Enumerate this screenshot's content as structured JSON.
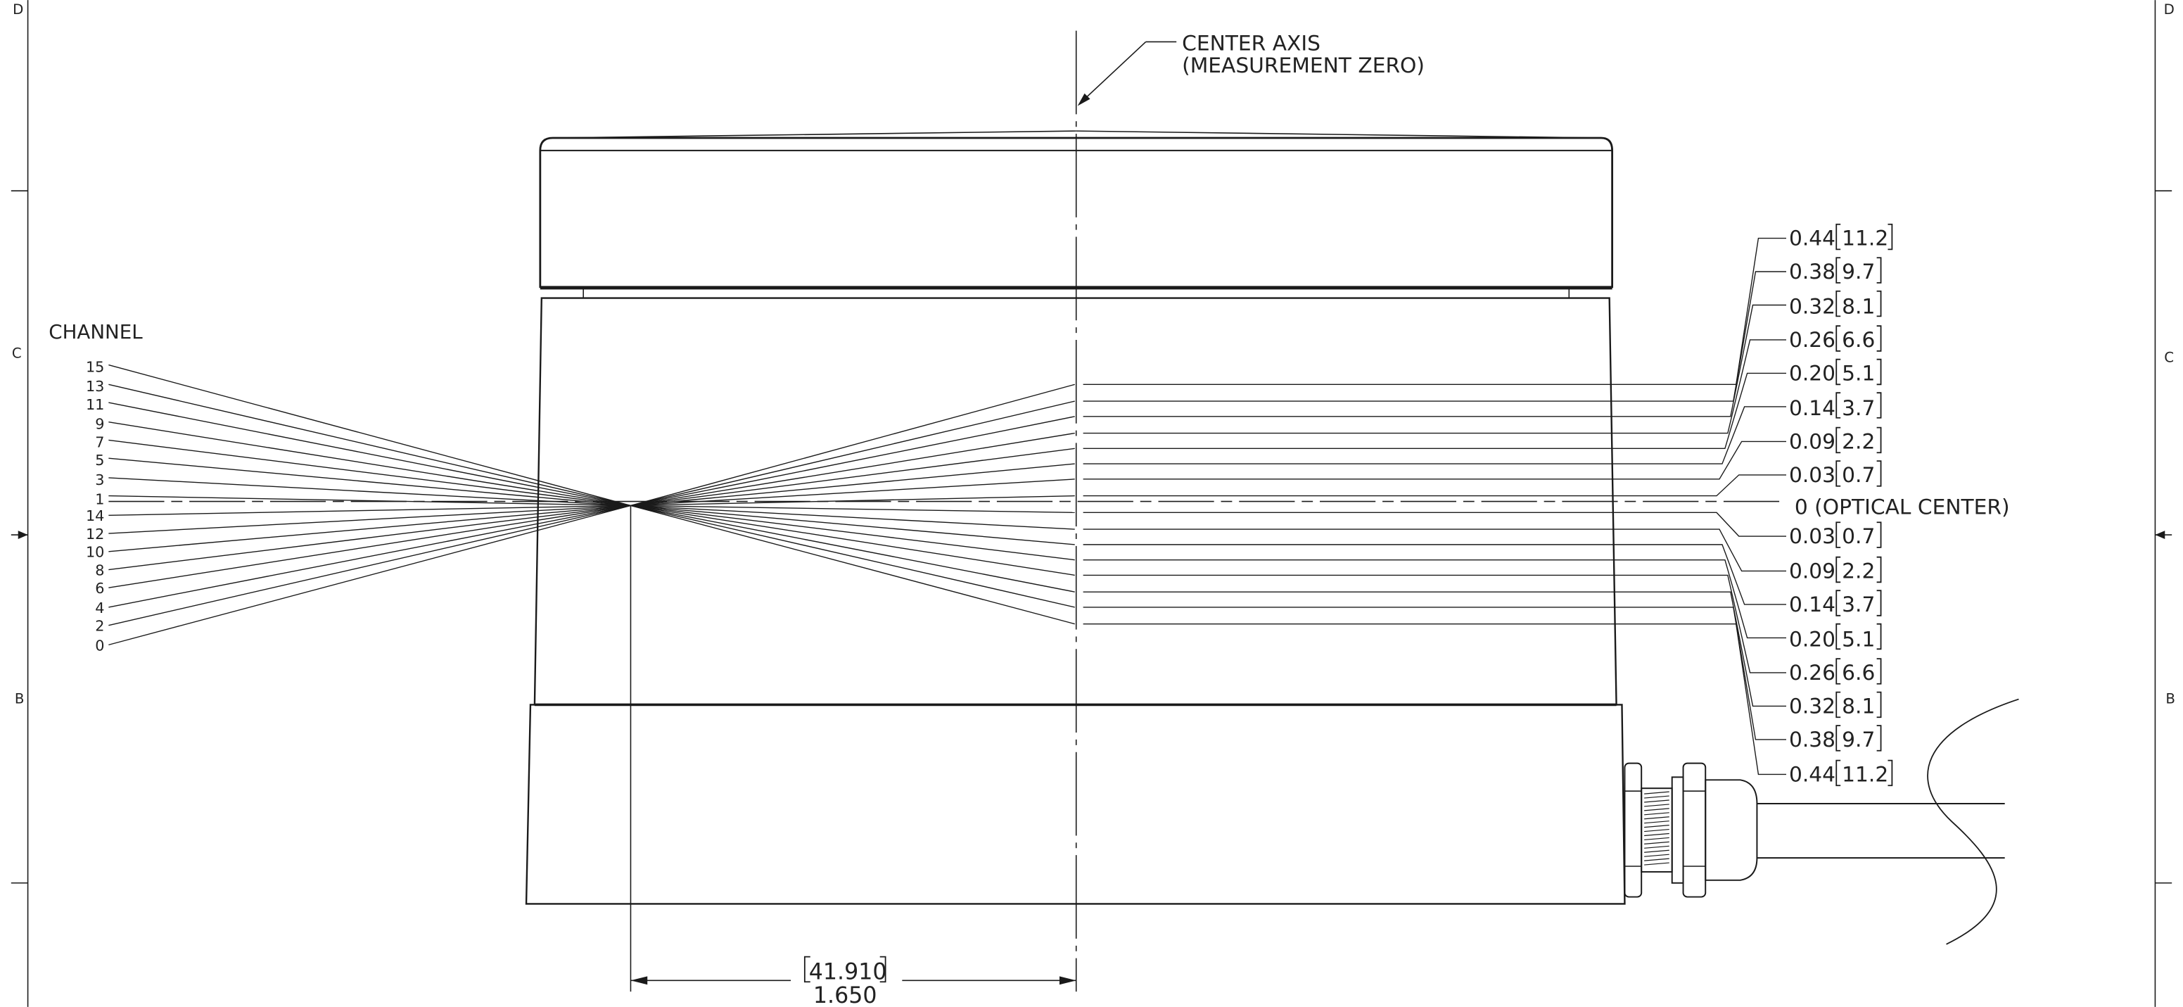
{
  "border": {
    "zone_letters_left": [
      "D",
      "C",
      "B"
    ],
    "zone_letters_right": [
      "D",
      "C",
      "B"
    ]
  },
  "center_axis": {
    "line1": "CENTER AXIS",
    "line2": "(MEASUREMENT ZERO)"
  },
  "channel": {
    "title": "CHANNEL",
    "numbers": [
      "15",
      "13",
      "11",
      "9",
      "7",
      "5",
      "3",
      "1",
      "14",
      "12",
      "10",
      "8",
      "6",
      "4",
      "2",
      "0"
    ]
  },
  "offsets": {
    "above": [
      {
        "inch": "0.44",
        "mm": "11.2"
      },
      {
        "inch": "0.38",
        "mm": "9.7"
      },
      {
        "inch": "0.32",
        "mm": "8.1"
      },
      {
        "inch": "0.26",
        "mm": "6.6"
      },
      {
        "inch": "0.20",
        "mm": "5.1"
      },
      {
        "inch": "0.14",
        "mm": "3.7"
      },
      {
        "inch": "0.09",
        "mm": "2.2"
      },
      {
        "inch": "0.03",
        "mm": "0.7"
      }
    ],
    "optical_center": "0 (OPTICAL CENTER)",
    "below": [
      {
        "inch": "0.03",
        "mm": "0.7"
      },
      {
        "inch": "0.09",
        "mm": "2.2"
      },
      {
        "inch": "0.14",
        "mm": "3.7"
      },
      {
        "inch": "0.20",
        "mm": "5.1"
      },
      {
        "inch": "0.26",
        "mm": "6.6"
      },
      {
        "inch": "0.32",
        "mm": "8.1"
      },
      {
        "inch": "0.38",
        "mm": "9.7"
      },
      {
        "inch": "0.44",
        "mm": "11.2"
      }
    ]
  },
  "bottom_dimension": {
    "mm": "41.910",
    "inch": "1.650"
  }
}
